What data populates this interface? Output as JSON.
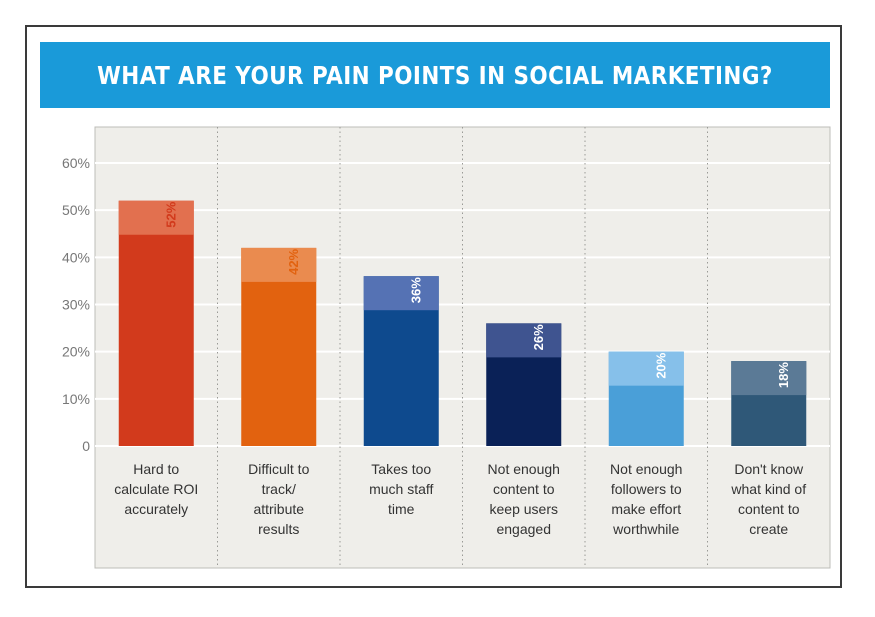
{
  "chart_data": {
    "type": "bar",
    "title": "WHAT ARE YOUR PAIN POINTS IN SOCIAL MARKETING?",
    "xlabel": "",
    "ylabel": "",
    "ylim": [
      0,
      60
    ],
    "yticks": [
      "0",
      "10%",
      "20%",
      "30%",
      "40%",
      "50%",
      "60%"
    ],
    "grid": true,
    "categories": [
      [
        "Hard to",
        "calculate ROI",
        "accurately"
      ],
      [
        "Difficult to",
        "track/",
        "attribute",
        "results"
      ],
      [
        "Takes too",
        "much staff",
        "time"
      ],
      [
        "Not enough",
        "content to",
        "keep users",
        "engaged"
      ],
      [
        "Not enough",
        "followers to",
        "make effort",
        "worthwhile"
      ],
      [
        "Don't know",
        "what kind of",
        "content to",
        "create"
      ]
    ],
    "values": [
      52,
      42,
      36,
      26,
      20,
      18
    ],
    "value_labels": [
      "52%",
      "42%",
      "36%",
      "26%",
      "20%",
      "18%"
    ],
    "colors": {
      "bar_main": [
        "#d23a1c",
        "#e2620f",
        "#0e4a8e",
        "#0a2157",
        "#4a9fd8",
        "#2f5878"
      ],
      "bar_top": [
        "#e2704f",
        "#ea8b4f",
        "#5572b4",
        "#3f5490",
        "#86c0ea",
        "#5b7a96"
      ],
      "label": [
        "#d23a1c",
        "#e2620f",
        "#ffffff",
        "#ffffff",
        "#ffffff",
        "#ffffff"
      ],
      "label_digit_end": [
        "#ffffff",
        "#ffffff",
        "#0a2157",
        "#0a2157",
        "#4a9fd8",
        "#2f5878"
      ],
      "plot_bg": "#efeeea",
      "grid": "#ffffff",
      "banner": "#1a9ad9"
    }
  }
}
